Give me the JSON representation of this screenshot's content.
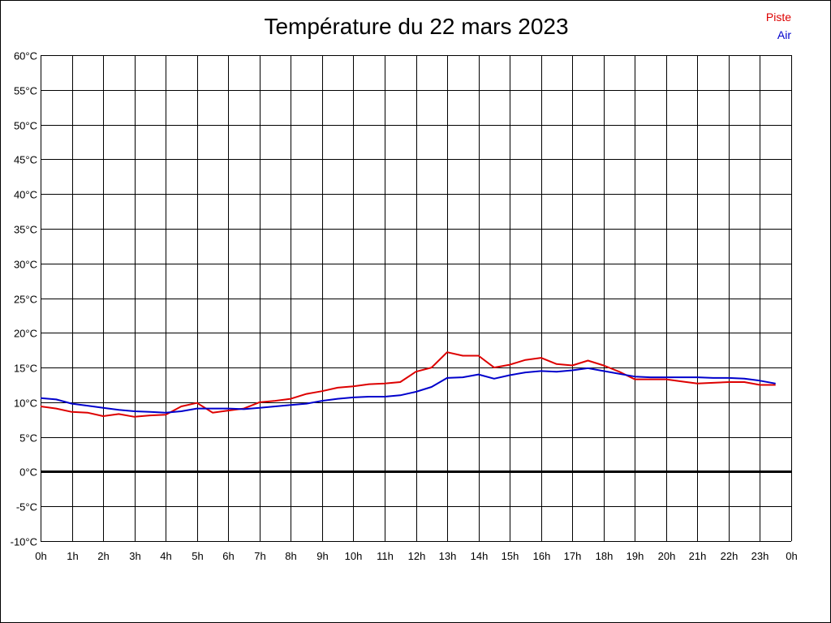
{
  "chart_data": {
    "type": "line",
    "title": "Température du 22 mars 2023",
    "xlabel": "",
    "ylabel": "",
    "ylim": [
      -10,
      60
    ],
    "xlim": [
      0,
      24
    ],
    "y_ticks": [
      "-10°C",
      "-5°C",
      "0°C",
      "5°C",
      "10°C",
      "15°C",
      "20°C",
      "25°C",
      "30°C",
      "35°C",
      "40°C",
      "45°C",
      "50°C",
      "55°C",
      "60°C"
    ],
    "x_ticks": [
      "0h",
      "1h",
      "2h",
      "3h",
      "4h",
      "5h",
      "6h",
      "7h",
      "8h",
      "9h",
      "10h",
      "11h",
      "12h",
      "13h",
      "14h",
      "15h",
      "16h",
      "17h",
      "18h",
      "19h",
      "20h",
      "21h",
      "22h",
      "23h",
      "0h"
    ],
    "grid": true,
    "legend_position": "top-right",
    "x": [
      0,
      0.5,
      1,
      1.5,
      2,
      2.5,
      3,
      3.5,
      4,
      4.5,
      5,
      5.5,
      6,
      6.5,
      7,
      7.5,
      8,
      8.5,
      9,
      9.5,
      10,
      10.5,
      11,
      11.5,
      12,
      12.5,
      13,
      13.5,
      14,
      14.5,
      15,
      15.5,
      16,
      16.5,
      17,
      17.5,
      18,
      18.5,
      19,
      19.5,
      20,
      20.5,
      21,
      21.5,
      22,
      22.5,
      23,
      23.5
    ],
    "series": [
      {
        "name": "Piste",
        "color": "#dd0000",
        "values": [
          9.4,
          9.1,
          8.6,
          8.5,
          8.0,
          8.3,
          7.9,
          8.1,
          8.2,
          9.4,
          9.9,
          8.5,
          8.8,
          9.1,
          10.0,
          10.2,
          10.5,
          11.2,
          11.6,
          12.1,
          12.3,
          12.6,
          12.7,
          12.9,
          14.4,
          15.0,
          17.2,
          16.7,
          16.7,
          15.0,
          15.4,
          16.1,
          16.4,
          15.5,
          15.3,
          16.0,
          15.3,
          14.4,
          13.3,
          13.3,
          13.3,
          13.0,
          12.7,
          12.8,
          12.9,
          12.9,
          12.5,
          12.5
        ]
      },
      {
        "name": "Air",
        "color": "#0000cc",
        "values": [
          10.6,
          10.4,
          9.8,
          9.5,
          9.2,
          8.9,
          8.7,
          8.6,
          8.5,
          8.7,
          9.1,
          9.1,
          9.1,
          9.0,
          9.2,
          9.4,
          9.6,
          9.8,
          10.2,
          10.5,
          10.7,
          10.8,
          10.8,
          11.0,
          11.5,
          12.2,
          13.5,
          13.6,
          14.0,
          13.4,
          13.9,
          14.3,
          14.5,
          14.4,
          14.6,
          14.9,
          14.5,
          14.1,
          13.7,
          13.6,
          13.6,
          13.6,
          13.6,
          13.5,
          13.5,
          13.4,
          13.1,
          12.7
        ]
      }
    ]
  }
}
